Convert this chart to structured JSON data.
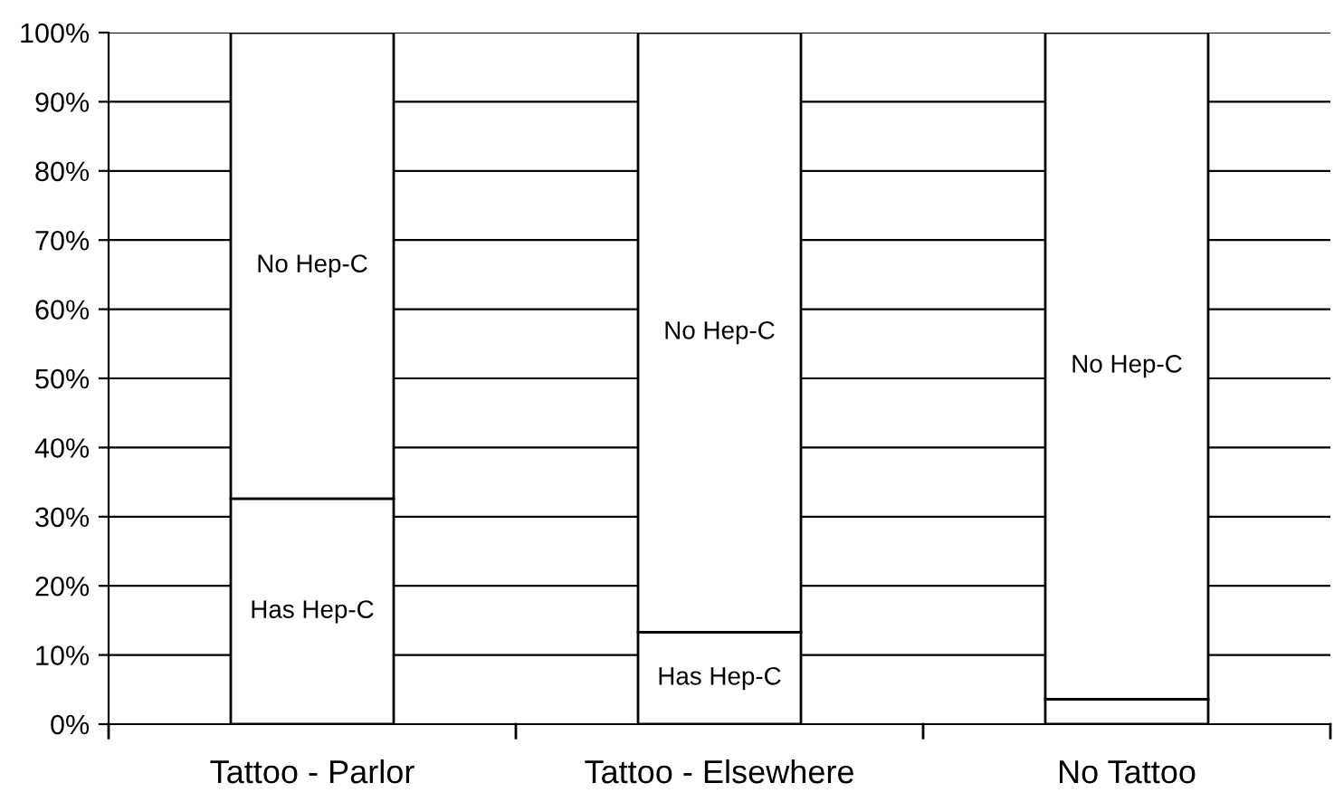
{
  "chart_data": {
    "type": "bar",
    "stacked": true,
    "categories": [
      "Tattoo - Parlor",
      "Tattoo - Elsewhere",
      "No Tattoo"
    ],
    "series": [
      {
        "color": "#ffffff",
        "values": [
          32.6,
          13.3,
          3.6
        ],
        "value_labels": [
          "Has Hep-C",
          "Has Hep-C",
          null
        ]
      },
      {
        "color": "#ffffff",
        "values": [
          67.4,
          86.7,
          96.4
        ],
        "value_labels": [
          "No Hep-C",
          "No Hep-C",
          "No Hep-C"
        ]
      }
    ],
    "ylim": [
      0,
      100
    ],
    "yticks": [
      {
        "value": 0,
        "label": "0%"
      },
      {
        "value": 10,
        "label": "10%"
      },
      {
        "value": 20,
        "label": "20%"
      },
      {
        "value": 30,
        "label": "30%"
      },
      {
        "value": 40,
        "label": "40%"
      },
      {
        "value": 50,
        "label": "50%"
      },
      {
        "value": 60,
        "label": "60%"
      },
      {
        "value": 70,
        "label": "70%"
      },
      {
        "value": 80,
        "label": "80%"
      },
      {
        "value": 90,
        "label": "90%"
      },
      {
        "value": 100,
        "label": "100%"
      }
    ],
    "grid": "y",
    "legend": false
  }
}
